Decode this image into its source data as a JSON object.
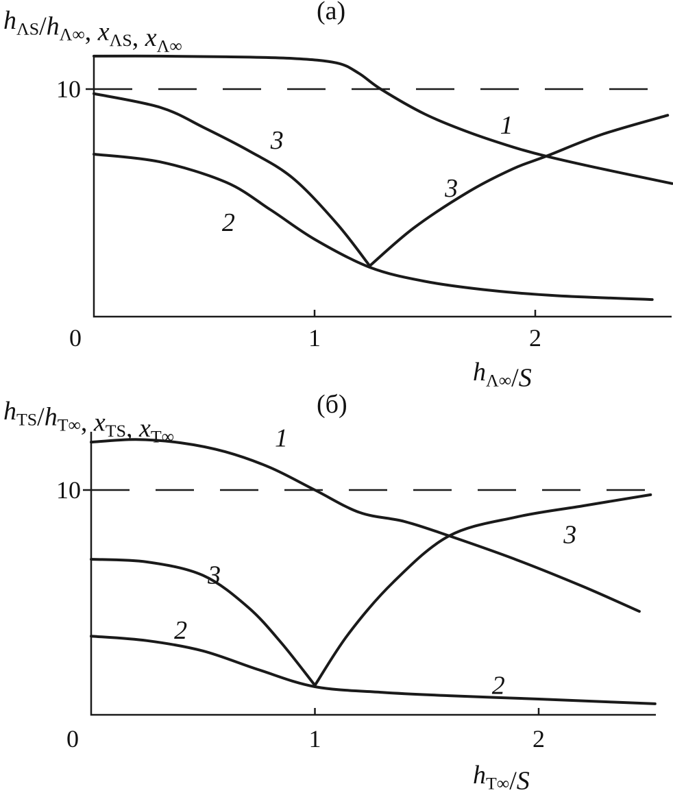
{
  "chart_data": [
    {
      "type": "line",
      "panel_label": "(a)",
      "ylabel_parts": [
        [
          "h",
          "ΛS"
        ],
        [
          "/h",
          "Λ∞"
        ],
        [
          ", x",
          "ΛS"
        ],
        [
          ", x",
          "Λ∞"
        ]
      ],
      "xlabel_parts": [
        [
          "h",
          "Λ∞"
        ],
        [
          "/S",
          ""
        ]
      ],
      "xticks": [
        0,
        1,
        2
      ],
      "xtick_labels": [
        "0",
        "1",
        "2"
      ],
      "yticks": [
        10
      ],
      "ytick_labels": [
        "10"
      ],
      "xlim": [
        0,
        2.62
      ],
      "ylim": [
        0,
        11.6
      ],
      "reference_line": {
        "y": 10,
        "style": "dashed"
      },
      "series": [
        {
          "label": "1",
          "x": [
            0,
            0.3,
            0.6,
            0.9,
            1.1,
            1.2,
            1.3,
            1.5,
            1.7,
            1.9,
            2.05,
            2.3,
            2.62
          ],
          "y": [
            11.45,
            11.45,
            11.42,
            11.35,
            11.15,
            10.7,
            10.0,
            8.9,
            8.1,
            7.45,
            7.05,
            6.5,
            5.85
          ]
        },
        {
          "label": "2",
          "x": [
            0,
            0.3,
            0.6,
            0.8,
            1.0,
            1.25,
            1.5,
            1.8,
            2.1,
            2.53
          ],
          "y": [
            7.14,
            6.8,
            5.9,
            4.7,
            3.4,
            2.17,
            1.55,
            1.15,
            0.92,
            0.75
          ]
        },
        {
          "label": "3",
          "x": [
            0,
            0.3,
            0.5,
            0.7,
            0.9,
            1.1,
            1.25,
            1.45,
            1.7,
            1.9,
            2.05,
            2.3,
            2.6
          ],
          "y": [
            9.8,
            9.2,
            8.3,
            7.3,
            6.1,
            4.1,
            2.23,
            3.9,
            5.5,
            6.5,
            7.05,
            8.0,
            8.85
          ]
        }
      ],
      "annotations": [
        {
          "text": "1",
          "x": 1.87,
          "y": 8.4
        },
        {
          "text": "3",
          "x": 0.83,
          "y": 7.74
        },
        {
          "text": "3",
          "x": 1.62,
          "y": 5.63
        },
        {
          "text": "2",
          "x": 0.61,
          "y": 4.13
        }
      ]
    },
    {
      "type": "line",
      "panel_label": "(б)",
      "ylabel_parts": [
        [
          "h",
          "TS"
        ],
        [
          "/h",
          "T∞"
        ],
        [
          ", x",
          "TS"
        ],
        [
          ", x",
          "T∞"
        ]
      ],
      "xlabel_parts": [
        [
          "h",
          "T∞"
        ],
        [
          "/S",
          ""
        ]
      ],
      "xticks": [
        0,
        1,
        2
      ],
      "xtick_labels": [
        "0",
        "1",
        "2"
      ],
      "yticks": [
        10
      ],
      "ytick_labels": [
        "10"
      ],
      "xlim": [
        0,
        2.52
      ],
      "ylim": [
        0,
        12.3
      ],
      "reference_line": {
        "y": 10,
        "style": "dashed"
      },
      "series": [
        {
          "label": "1",
          "x": [
            0,
            0.2,
            0.4,
            0.6,
            0.8,
            1.0,
            1.2,
            1.4,
            1.6,
            1.9,
            2.2,
            2.45
          ],
          "y": [
            12.13,
            12.25,
            12.1,
            11.7,
            11.0,
            10.0,
            9.0,
            8.6,
            7.96,
            6.9,
            5.7,
            4.6
          ]
        },
        {
          "label": "2",
          "x": [
            0,
            0.25,
            0.5,
            0.75,
            1.0,
            1.3,
            1.6,
            2.0,
            2.3,
            2.52
          ],
          "y": [
            3.5,
            3.3,
            2.84,
            2.0,
            1.25,
            1.0,
            0.85,
            0.7,
            0.58,
            0.49
          ]
        },
        {
          "label": "3",
          "x": [
            0,
            0.25,
            0.5,
            0.7,
            0.85,
            1.0,
            1.15,
            1.35,
            1.6,
            1.9,
            2.2,
            2.5
          ],
          "y": [
            6.92,
            6.8,
            6.2,
            4.8,
            3.2,
            1.31,
            3.6,
            5.9,
            7.96,
            8.8,
            9.3,
            9.79
          ]
        }
      ],
      "annotations": [
        {
          "text": "1",
          "x": 0.85,
          "y": 12.3
        },
        {
          "text": "3",
          "x": 2.14,
          "y": 8.0
        },
        {
          "text": "3",
          "x": 0.55,
          "y": 6.2
        },
        {
          "text": "2",
          "x": 0.4,
          "y": 3.75
        },
        {
          "text": "2",
          "x": 1.82,
          "y": 1.3
        }
      ]
    }
  ]
}
